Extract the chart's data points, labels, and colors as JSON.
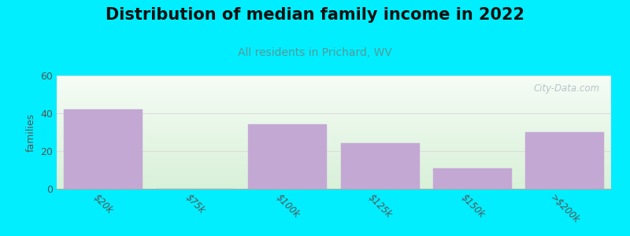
{
  "title": "Distribution of median family income in 2022",
  "subtitle": "All residents in Prichard, WV",
  "categories": [
    "$20k",
    "$75k",
    "$100k",
    "$125k",
    "$150k",
    ">$200k"
  ],
  "values": [
    42,
    0,
    34,
    24,
    11,
    30
  ],
  "bar_color": "#c4a8d4",
  "bar_edgecolor": "#c4a8d4",
  "ylabel": "families",
  "ylim": [
    0,
    60
  ],
  "yticks": [
    0,
    20,
    40,
    60
  ],
  "background_color": "#00EEFF",
  "plot_bg_top": "#f5fcf5",
  "plot_bg_bottom": "#d8f0d8",
  "title_fontsize": 15,
  "subtitle_fontsize": 10,
  "subtitle_color": "#559999",
  "watermark": "City-Data.com",
  "grid_color": "#dddddd",
  "tick_label_color": "#555555"
}
